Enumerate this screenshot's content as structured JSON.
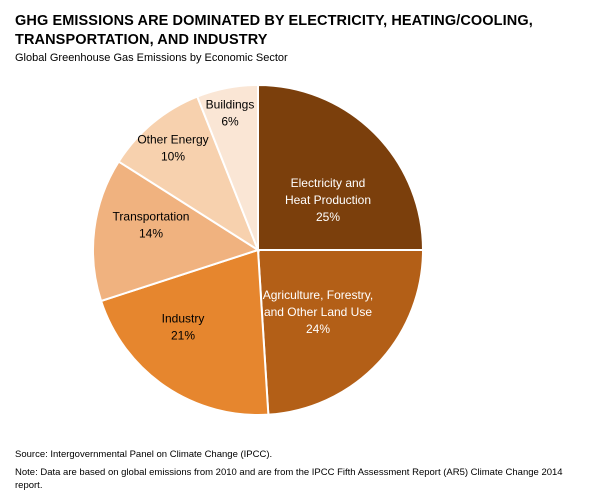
{
  "header": {
    "title": "GHG EMISSIONS ARE DOMINATED BY ELECTRICITY, HEATING/COOLING, TRANSPORTATION, AND INDUSTRY",
    "subtitle": "Global Greenhouse Gas Emissions by Economic Sector"
  },
  "footer": {
    "source": "Source: Intergovernmental Panel on Climate Change (IPCC).",
    "note": "Note: Data are based on global emissions from 2010 and are from the IPCC Fifth Assessment Report (AR5) Climate Change 2014 report."
  },
  "chart_data": {
    "type": "pie",
    "title": "GHG EMISSIONS ARE DOMINATED BY ELECTRICITY, HEATING/COOLING, TRANSPORTATION, AND INDUSTRY",
    "subtitle": "Global Greenhouse Gas Emissions by Economic Sector",
    "unit": "%",
    "slices": [
      {
        "label": [
          "Electricity and",
          "Heat Production"
        ],
        "value": 25,
        "value_label": "25%",
        "color": "#7b3f0c",
        "text_color": "#ffffff"
      },
      {
        "label": [
          "Agriculture, Forestry,",
          "and Other Land Use"
        ],
        "value": 24,
        "value_label": "24%",
        "color": "#b35f17",
        "text_color": "#ffffff"
      },
      {
        "label": [
          "Industry"
        ],
        "value": 21,
        "value_label": "21%",
        "color": "#e6862e",
        "text_color": "#000000"
      },
      {
        "label": [
          "Transportation"
        ],
        "value": 14,
        "value_label": "14%",
        "color": "#f0b27f",
        "text_color": "#000000"
      },
      {
        "label": [
          "Other Energy"
        ],
        "value": 10,
        "value_label": "10%",
        "color": "#f7d1ae",
        "text_color": "#000000"
      },
      {
        "label": [
          "Buildings"
        ],
        "value": 6,
        "value_label": "6%",
        "color": "#fae6d5",
        "text_color": "#000000"
      }
    ]
  }
}
